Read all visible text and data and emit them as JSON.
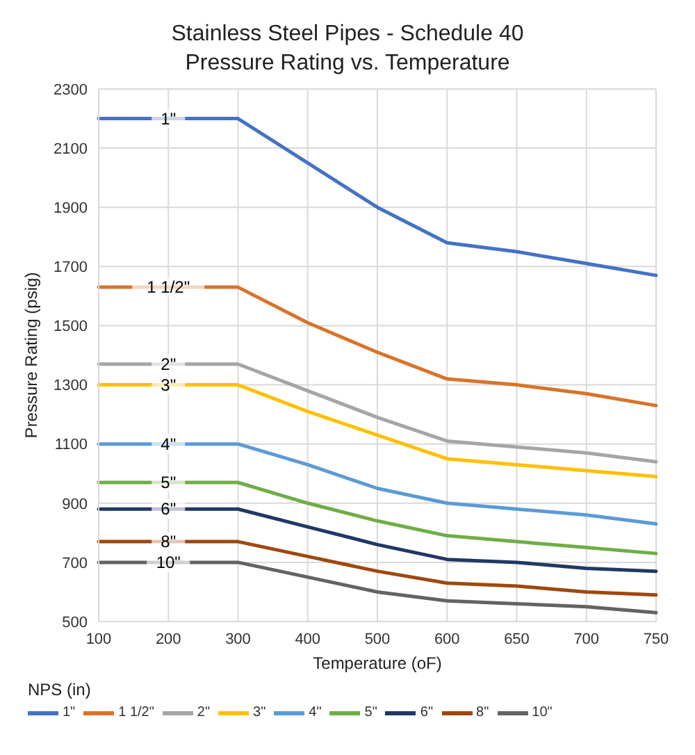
{
  "chart_data": {
    "type": "line",
    "title": "Stainless Steel Pipes - Schedule 40\nPressure Rating vs. Temperature",
    "xlabel": "Temperature (oF)",
    "ylabel": "Pressure Rating (psig)",
    "legend_title": "NPS (in)",
    "categories": [
      "100",
      "200",
      "300",
      "400",
      "500",
      "600",
      "650",
      "700",
      "750"
    ],
    "ylim": [
      500,
      2300
    ],
    "yticks": [
      500,
      700,
      900,
      1100,
      1300,
      1500,
      1700,
      1900,
      2100,
      2300
    ],
    "grid": true,
    "legend": "bottom",
    "marker": "none",
    "line_style": "solid",
    "series": [
      {
        "name": "1\"",
        "color": "#4472c4",
        "values": [
          2200,
          2200,
          2200,
          2050,
          1900,
          1780,
          1750,
          1710,
          1670
        ]
      },
      {
        "name": "1 1/2\"",
        "color": "#d9732a",
        "values": [
          1630,
          1630,
          1630,
          1510,
          1410,
          1320,
          1300,
          1270,
          1230
        ]
      },
      {
        "name": "2\"",
        "color": "#a5a5a5",
        "values": [
          1370,
          1370,
          1370,
          1280,
          1190,
          1110,
          1090,
          1070,
          1040
        ]
      },
      {
        "name": "3\"",
        "color": "#ffc000",
        "values": [
          1300,
          1300,
          1300,
          1210,
          1130,
          1050,
          1030,
          1010,
          990
        ]
      },
      {
        "name": "4\"",
        "color": "#5b9bd5",
        "values": [
          1100,
          1100,
          1100,
          1030,
          950,
          900,
          880,
          860,
          830
        ]
      },
      {
        "name": "5\"",
        "color": "#70ad47",
        "values": [
          970,
          970,
          970,
          900,
          840,
          790,
          770,
          750,
          730
        ]
      },
      {
        "name": "6\"",
        "color": "#203864",
        "values": [
          880,
          880,
          880,
          820,
          760,
          710,
          700,
          680,
          670
        ]
      },
      {
        "name": "8\"",
        "color": "#9e480e",
        "values": [
          770,
          770,
          770,
          720,
          670,
          630,
          620,
          600,
          590
        ]
      },
      {
        "name": "10\"",
        "color": "#636363",
        "values": [
          700,
          700,
          700,
          650,
          600,
          570,
          560,
          550,
          530
        ]
      }
    ]
  }
}
